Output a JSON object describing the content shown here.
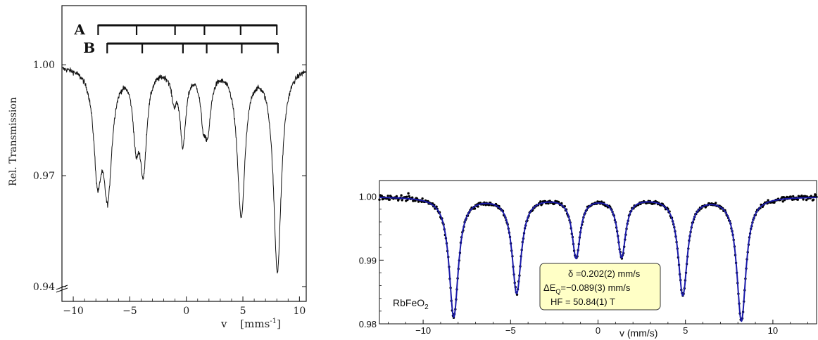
{
  "chart_data": [
    {
      "type": "line",
      "style": "scanned spectrum, two sextets",
      "xlabel": "v",
      "xunit": "[mms",
      "xunit_sup": "-1",
      "xunit_close": "]",
      "ylabel": "Rel. Transmission",
      "xlim": [
        -11,
        10.6
      ],
      "ylim": [
        0.936,
        1.016
      ],
      "xticks": [
        -10,
        -5,
        0,
        5,
        10
      ],
      "xtick_labels": [
        "−10",
        "−5",
        "0",
        "5",
        "10"
      ],
      "yticks": [
        0.94,
        0.97,
        1.0
      ],
      "ytick_labels": [
        "0.94",
        "0.97",
        "1.00"
      ],
      "baseline": 1.0,
      "sextets": [
        {
          "name": "A",
          "positions": [
            -7.8,
            -4.4,
            -1.0,
            1.6,
            4.8,
            8.0
          ]
        },
        {
          "name": "B",
          "positions": [
            -7.0,
            -3.9,
            -0.3,
            1.8,
            4.9,
            8.1
          ]
        }
      ],
      "lines": [
        {
          "x": -7.85,
          "depth": 0.027,
          "width": 0.42
        },
        {
          "x": -6.95,
          "depth": 0.032,
          "width": 0.45
        },
        {
          "x": -4.45,
          "depth": 0.017,
          "width": 0.32
        },
        {
          "x": -3.8,
          "depth": 0.026,
          "width": 0.36
        },
        {
          "x": -1.1,
          "depth": 0.007,
          "width": 0.28
        },
        {
          "x": -0.3,
          "depth": 0.02,
          "width": 0.32
        },
        {
          "x": 1.5,
          "depth": 0.011,
          "width": 0.3
        },
        {
          "x": 1.9,
          "depth": 0.014,
          "width": 0.34
        },
        {
          "x": 4.85,
          "depth": 0.04,
          "width": 0.42
        },
        {
          "x": 8.05,
          "depth": 0.055,
          "width": 0.42
        }
      ],
      "grid": false
    },
    {
      "type": "scatter",
      "style": "data points with blue fit curve",
      "xlabel": "v (mm/s)",
      "ylabel": "",
      "xlim": [
        -12.5,
        12.5
      ],
      "ylim": [
        0.98,
        1.0025
      ],
      "xticks": [
        -10,
        -5,
        0,
        5,
        10
      ],
      "xtick_labels": [
        "−10",
        "−5",
        "0",
        "5",
        "10"
      ],
      "yticks": [
        0.98,
        0.99,
        1.0
      ],
      "ytick_labels": [
        "0.98",
        "0.99",
        "1.00"
      ],
      "baseline": 1.0,
      "fit_color": "#1a1aa8",
      "point_color": "#000000",
      "fit_lines": [
        {
          "x": -8.25,
          "depth": 0.0188,
          "width": 0.32
        },
        {
          "x": -4.65,
          "depth": 0.015,
          "width": 0.32
        },
        {
          "x": -1.25,
          "depth": 0.0094,
          "width": 0.28
        },
        {
          "x": 1.35,
          "depth": 0.0093,
          "width": 0.28
        },
        {
          "x": 4.85,
          "depth": 0.0153,
          "width": 0.32
        },
        {
          "x": 8.2,
          "depth": 0.0194,
          "width": 0.32
        }
      ],
      "sample": "RbFeO",
      "sample_sub": "2",
      "legend": {
        "line1_sym": "δ",
        "line1_rest": " =0.202(2) mm/s",
        "line2_sym": "Δ",
        "line2_E": "E",
        "line2_sub": "Q",
        "line2_rest": "=−0.089(3) mm/s",
        "line3": "HF = 50.84(1) T",
        "fill": "#ffffc6",
        "placement": "center"
      },
      "grid": false
    }
  ]
}
